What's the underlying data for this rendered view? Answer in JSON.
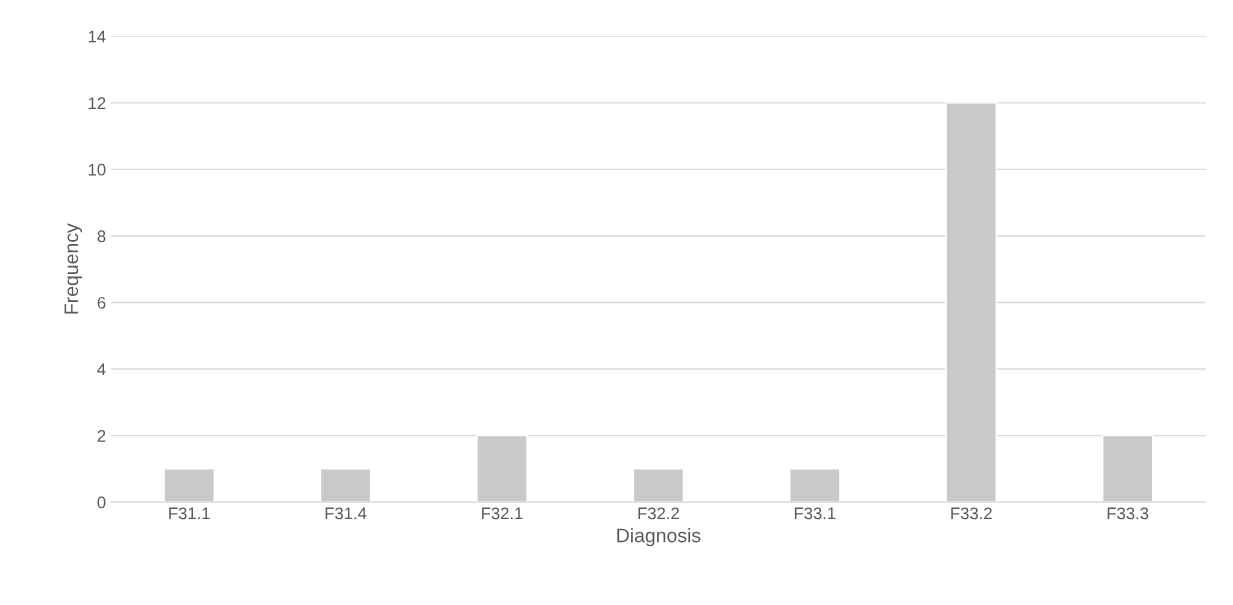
{
  "chart_data": {
    "type": "bar",
    "xlabel": "Diagnosis",
    "ylabel": "Frequency",
    "categories": [
      "F31.1",
      "F31.4",
      "F32.1",
      "F32.2",
      "F33.1",
      "F33.2",
      "F33.3"
    ],
    "values": [
      1,
      1,
      2,
      1,
      1,
      12,
      2
    ],
    "color": "#c9c9c9",
    "ylim": [
      0,
      14
    ],
    "yticks": [
      0,
      2,
      4,
      6,
      8,
      10,
      12,
      14
    ],
    "grid": "y",
    "legend": false
  }
}
